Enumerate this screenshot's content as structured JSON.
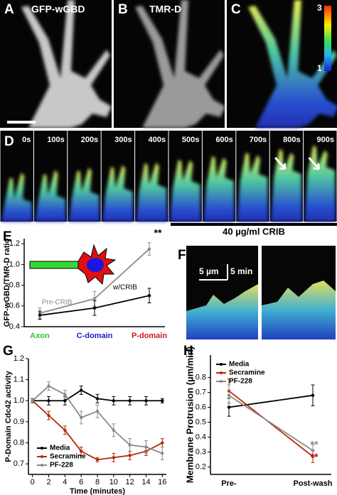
{
  "panel_letters": [
    "A",
    "B",
    "C",
    "D",
    "E",
    "F",
    "G",
    "H"
  ],
  "image_labels": {
    "a": "GFP-wGBD",
    "b": "TMR-D",
    "colorbar_max": "3",
    "colorbar_min": "1"
  },
  "timelapse": {
    "times": [
      "0s",
      "100s",
      "200s",
      "300s",
      "400s",
      "500s",
      "600s",
      "700s",
      "800s",
      "900s"
    ],
    "treatment": "40 µg/ml CRIB"
  },
  "kymograph": {
    "scale_x": "5 µm",
    "scale_y": "5 min"
  },
  "chart_data": [
    {
      "type": "line",
      "ylabel": "GFP-wGBD/TMR-D ratio",
      "categories": [
        "Axon",
        "C-domain",
        "P-domain"
      ],
      "category_colors": [
        "#33c233",
        "#1a1ad0",
        "#d01a1a"
      ],
      "series": [
        {
          "name": "Pre-CRIB",
          "color": "#8a8a8a",
          "values": [
            0.53,
            0.67,
            1.15
          ],
          "errors": [
            0.05,
            0.07,
            0.06
          ]
        },
        {
          "name": "w/CRIB",
          "color": "#000000",
          "values": [
            0.51,
            0.58,
            0.7
          ],
          "errors": [
            0.04,
            0.07,
            0.07
          ]
        }
      ],
      "ylim": [
        0.4,
        1.25
      ],
      "yticks": [
        0.4,
        0.6,
        0.8,
        {
          "value": 1.0,
          "label": "1.0"
        },
        1.2
      ],
      "annotations": [
        {
          "text": "**",
          "color": "#000000"
        }
      ]
    },
    {
      "type": "line",
      "xlabel": "Time (minutes)",
      "ylabel": "P-Domain Cdc42 activity",
      "x": [
        0,
        2,
        4,
        6,
        8,
        10,
        12,
        14,
        16
      ],
      "series": [
        {
          "name": "Media",
          "color": "#000000",
          "values": [
            1.0,
            1.0,
            1.0,
            1.05,
            1.01,
            1.0,
            1.0,
            1.0,
            1.0
          ],
          "errors": [
            0.01,
            0.02,
            0.02,
            0.02,
            0.02,
            0.02,
            0.02,
            0.02,
            0.01
          ]
        },
        {
          "name": "Secramine",
          "color": "#b22a0a",
          "values": [
            1.0,
            0.93,
            0.86,
            0.76,
            0.72,
            0.73,
            0.74,
            0.76,
            0.8
          ],
          "errors": [
            0.01,
            0.02,
            0.02,
            0.02,
            0.01,
            0.02,
            0.02,
            0.02,
            0.02
          ]
        },
        {
          "name": "PF-228",
          "color": "#8a8a8a",
          "values": [
            1.0,
            1.07,
            1.03,
            0.92,
            0.95,
            0.86,
            0.79,
            0.78,
            0.75
          ],
          "errors": [
            0.01,
            0.02,
            0.02,
            0.03,
            0.03,
            0.03,
            0.03,
            0.03,
            0.03
          ]
        }
      ],
      "xlim": [
        -0.5,
        16.5
      ],
      "xticks": [
        0,
        2,
        4,
        6,
        8,
        10,
        12,
        14,
        16
      ],
      "ylim": [
        0.65,
        1.2
      ],
      "yticks": [
        0.7,
        0.8,
        0.9,
        {
          "value": 1.0,
          "label": "1.0"
        },
        1.1,
        1.2
      ],
      "legend": "lower left"
    },
    {
      "type": "line",
      "ylabel": "Membrane Protrusion (µm/min)",
      "categories": [
        "Pre-",
        "Post-wash"
      ],
      "series": [
        {
          "name": "Media",
          "color": "#000000",
          "values": [
            0.6,
            0.68
          ],
          "errors": [
            0.06,
            0.07
          ]
        },
        {
          "name": "Secramine",
          "color": "#b22a0a",
          "values": [
            0.71,
            0.27
          ],
          "errors": [
            0.08,
            0.04
          ]
        },
        {
          "name": "PF-228",
          "color": "#8a8a8a",
          "values": [
            0.68,
            0.31
          ],
          "errors": [
            0.07,
            0.04
          ]
        }
      ],
      "ylim": [
        0.15,
        0.95
      ],
      "yticks": [
        0.2,
        0.3,
        0.4,
        0.5,
        0.6,
        0.7,
        0.8
      ],
      "legend": "upper left",
      "annotations": [
        {
          "text": "**",
          "color": "#8a8a8a"
        },
        {
          "text": "**",
          "color": "#c01010"
        }
      ]
    }
  ]
}
